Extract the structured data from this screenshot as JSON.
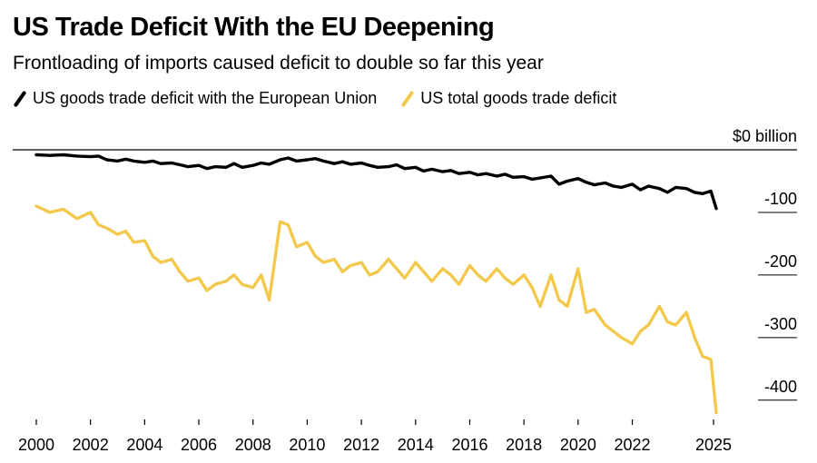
{
  "header": {
    "title": "US Trade Deficit With the EU Deepening",
    "subtitle": "Frontloading of imports caused deficit to double so far this year"
  },
  "chart_data": {
    "type": "line",
    "title": "US Trade Deficit With the EU Deepening",
    "subtitle": "Frontloading of imports caused deficit to double so far this year",
    "xlabel": "",
    "ylabel": "",
    "x_ticks": [
      "2000",
      "2002",
      "2004",
      "2006",
      "2008",
      "2010",
      "2012",
      "2014",
      "2016",
      "2018",
      "2020",
      "2022",
      "2025"
    ],
    "y_ticks": [
      {
        "value": 0,
        "label": "$0 billion"
      },
      {
        "value": -100,
        "label": "-100"
      },
      {
        "value": -200,
        "label": "-200"
      },
      {
        "value": -300,
        "label": "-300"
      },
      {
        "value": -400,
        "label": "-400"
      }
    ],
    "ylim": [
      -425,
      0
    ],
    "xlim": [
      2000,
      2025.3
    ],
    "grid": "horizontal at y ticks",
    "legend_position": "top-left",
    "series": [
      {
        "name": "US goods trade deficit with the European Union",
        "color": "#000000",
        "points": [
          [
            2000.0,
            -8
          ],
          [
            2000.5,
            -9
          ],
          [
            2001.0,
            -8
          ],
          [
            2001.5,
            -10
          ],
          [
            2002.0,
            -11
          ],
          [
            2002.3,
            -10
          ],
          [
            2002.6,
            -16
          ],
          [
            2003.0,
            -18
          ],
          [
            2003.3,
            -15
          ],
          [
            2003.6,
            -18
          ],
          [
            2004.0,
            -20
          ],
          [
            2004.3,
            -18
          ],
          [
            2004.6,
            -22
          ],
          [
            2005.0,
            -21
          ],
          [
            2005.3,
            -24
          ],
          [
            2005.6,
            -27
          ],
          [
            2006.0,
            -25
          ],
          [
            2006.3,
            -30
          ],
          [
            2006.6,
            -27
          ],
          [
            2007.0,
            -28
          ],
          [
            2007.3,
            -22
          ],
          [
            2007.6,
            -28
          ],
          [
            2008.0,
            -25
          ],
          [
            2008.3,
            -21
          ],
          [
            2008.6,
            -23
          ],
          [
            2009.0,
            -16
          ],
          [
            2009.3,
            -13
          ],
          [
            2009.6,
            -18
          ],
          [
            2010.0,
            -16
          ],
          [
            2010.3,
            -14
          ],
          [
            2010.6,
            -18
          ],
          [
            2011.0,
            -22
          ],
          [
            2011.3,
            -19
          ],
          [
            2011.6,
            -23
          ],
          [
            2012.0,
            -21
          ],
          [
            2012.3,
            -25
          ],
          [
            2012.6,
            -28
          ],
          [
            2013.0,
            -27
          ],
          [
            2013.3,
            -24
          ],
          [
            2013.6,
            -30
          ],
          [
            2014.0,
            -28
          ],
          [
            2014.3,
            -34
          ],
          [
            2014.6,
            -31
          ],
          [
            2015.0,
            -35
          ],
          [
            2015.3,
            -33
          ],
          [
            2015.6,
            -38
          ],
          [
            2016.0,
            -36
          ],
          [
            2016.3,
            -40
          ],
          [
            2016.6,
            -38
          ],
          [
            2017.0,
            -42
          ],
          [
            2017.3,
            -39
          ],
          [
            2017.6,
            -44
          ],
          [
            2018.0,
            -43
          ],
          [
            2018.3,
            -47
          ],
          [
            2018.6,
            -45
          ],
          [
            2019.0,
            -42
          ],
          [
            2019.3,
            -55
          ],
          [
            2019.6,
            -50
          ],
          [
            2020.0,
            -46
          ],
          [
            2020.3,
            -52
          ],
          [
            2020.6,
            -56
          ],
          [
            2021.0,
            -53
          ],
          [
            2021.3,
            -58
          ],
          [
            2021.6,
            -60
          ],
          [
            2022.0,
            -55
          ],
          [
            2022.3,
            -64
          ],
          [
            2022.6,
            -58
          ],
          [
            2023.0,
            -62
          ],
          [
            2023.3,
            -68
          ],
          [
            2023.6,
            -60
          ],
          [
            2024.0,
            -62
          ],
          [
            2024.3,
            -68
          ],
          [
            2024.6,
            -70
          ],
          [
            2024.9,
            -66
          ],
          [
            2025.1,
            -94
          ]
        ]
      },
      {
        "name": "US total goods trade deficit",
        "color": "#f2c94c",
        "points": [
          [
            2000.0,
            -90
          ],
          [
            2000.5,
            -100
          ],
          [
            2001.0,
            -95
          ],
          [
            2001.5,
            -110
          ],
          [
            2002.0,
            -100
          ],
          [
            2002.3,
            -120
          ],
          [
            2002.6,
            -125
          ],
          [
            2003.0,
            -135
          ],
          [
            2003.3,
            -130
          ],
          [
            2003.6,
            -148
          ],
          [
            2004.0,
            -145
          ],
          [
            2004.3,
            -170
          ],
          [
            2004.6,
            -180
          ],
          [
            2005.0,
            -175
          ],
          [
            2005.3,
            -195
          ],
          [
            2005.6,
            -210
          ],
          [
            2006.0,
            -205
          ],
          [
            2006.3,
            -225
          ],
          [
            2006.6,
            -215
          ],
          [
            2007.0,
            -210
          ],
          [
            2007.3,
            -200
          ],
          [
            2007.6,
            -215
          ],
          [
            2008.0,
            -220
          ],
          [
            2008.3,
            -200
          ],
          [
            2008.6,
            -240
          ],
          [
            2009.0,
            -115
          ],
          [
            2009.3,
            -120
          ],
          [
            2009.6,
            -155
          ],
          [
            2010.0,
            -148
          ],
          [
            2010.3,
            -170
          ],
          [
            2010.6,
            -180
          ],
          [
            2011.0,
            -175
          ],
          [
            2011.3,
            -195
          ],
          [
            2011.6,
            -185
          ],
          [
            2012.0,
            -180
          ],
          [
            2012.3,
            -200
          ],
          [
            2012.6,
            -195
          ],
          [
            2013.0,
            -175
          ],
          [
            2013.3,
            -190
          ],
          [
            2013.6,
            -205
          ],
          [
            2014.0,
            -180
          ],
          [
            2014.3,
            -195
          ],
          [
            2014.6,
            -210
          ],
          [
            2015.0,
            -190
          ],
          [
            2015.3,
            -200
          ],
          [
            2015.6,
            -215
          ],
          [
            2016.0,
            -185
          ],
          [
            2016.3,
            -200
          ],
          [
            2016.6,
            -210
          ],
          [
            2017.0,
            -190
          ],
          [
            2017.3,
            -205
          ],
          [
            2017.6,
            -215
          ],
          [
            2018.0,
            -200
          ],
          [
            2018.3,
            -220
          ],
          [
            2018.6,
            -250
          ],
          [
            2019.0,
            -200
          ],
          [
            2019.3,
            -240
          ],
          [
            2019.6,
            -250
          ],
          [
            2020.0,
            -190
          ],
          [
            2020.3,
            -260
          ],
          [
            2020.6,
            -255
          ],
          [
            2021.0,
            -280
          ],
          [
            2021.3,
            -290
          ],
          [
            2021.6,
            -300
          ],
          [
            2022.0,
            -310
          ],
          [
            2022.3,
            -290
          ],
          [
            2022.6,
            -280
          ],
          [
            2023.0,
            -250
          ],
          [
            2023.3,
            -275
          ],
          [
            2023.6,
            -280
          ],
          [
            2024.0,
            -260
          ],
          [
            2024.3,
            -300
          ],
          [
            2024.6,
            -330
          ],
          [
            2024.9,
            -335
          ],
          [
            2025.1,
            -420
          ]
        ]
      }
    ]
  }
}
